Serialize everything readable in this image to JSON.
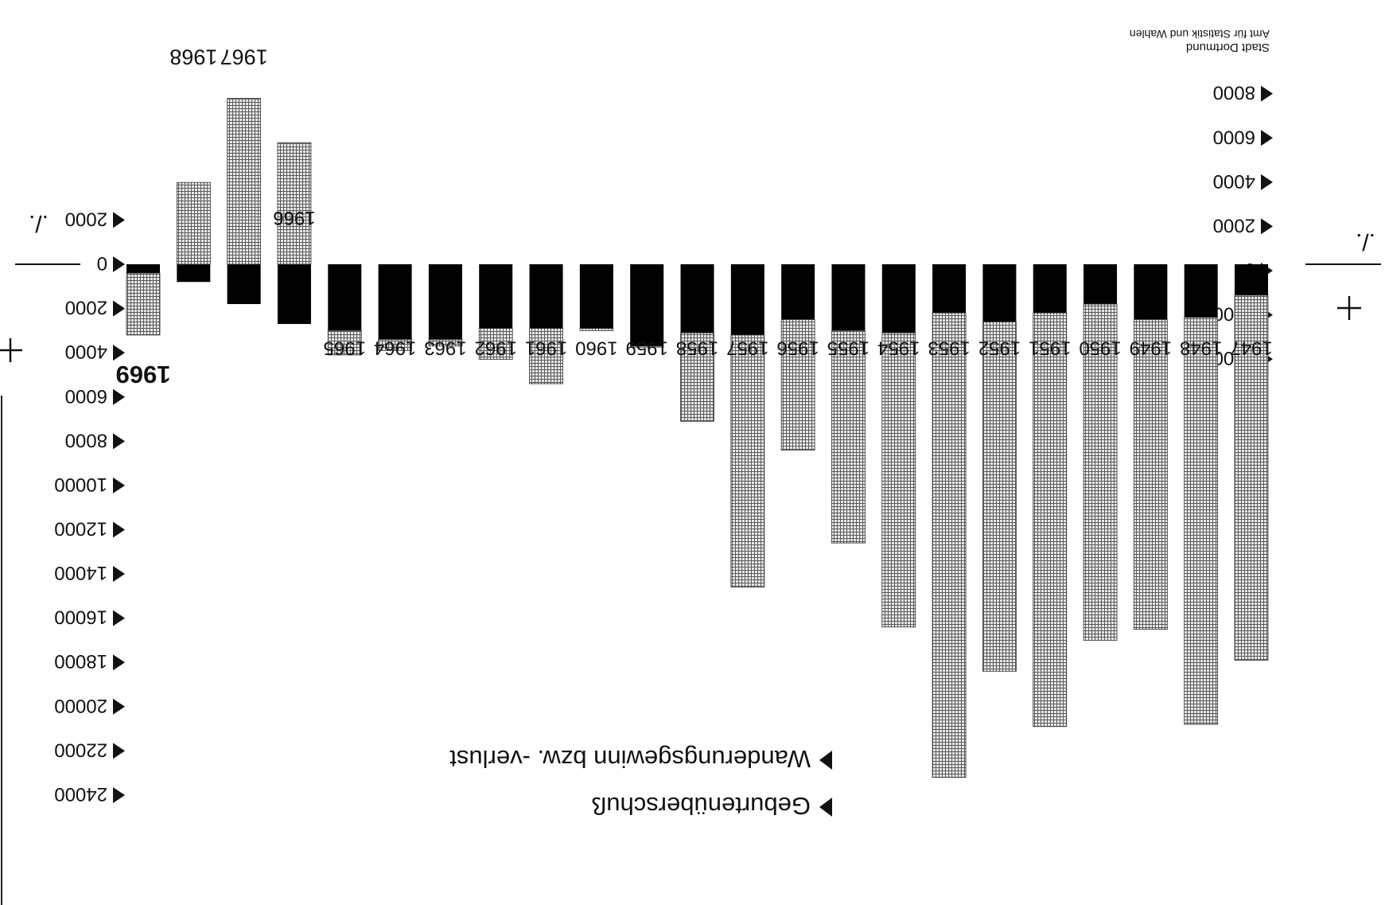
{
  "source": {
    "line1": "Stadt Dortmund",
    "line2": "Amt für Statistik und Wahlen"
  },
  "chart_data": {
    "type": "bar",
    "orientation": "rotated 180°",
    "categories": [
      "1947",
      "1948",
      "1949",
      "1950",
      "1951",
      "1952",
      "1953",
      "1954",
      "1955",
      "1956",
      "1957",
      "1958",
      "1959",
      "1960",
      "1961",
      "1962",
      "1963",
      "1964",
      "1965",
      "1966",
      "1967",
      "1968",
      "1969"
    ],
    "series": [
      {
        "name": "Wanderungsgewinn bzw. -verlust",
        "color": "#bdbdbd",
        "pattern": "grid",
        "values": [
          16500,
          18400,
          14000,
          15200,
          18700,
          15800,
          21000,
          13300,
          9600,
          5900,
          11400,
          4000,
          50,
          100,
          2500,
          1400,
          300,
          500,
          1100,
          -5500,
          -7500,
          -3700,
          2800
        ]
      },
      {
        "name": "Geburtenüberschuß",
        "color": "#000000",
        "pattern": "solid",
        "values": [
          1400,
          2400,
          2500,
          1800,
          2200,
          2600,
          2200,
          3100,
          3000,
          2500,
          3200,
          3100,
          3700,
          2900,
          2900,
          2900,
          3400,
          3400,
          3000,
          2700,
          1800,
          800,
          400
        ]
      }
    ],
    "ylim": [
      -9000,
      24000
    ],
    "y_ticks": [
      {
        "value": -8000,
        "label": "8000"
      },
      {
        "value": -6000,
        "label": "6000"
      },
      {
        "value": -4000,
        "label": "4000"
      },
      {
        "value": -2000,
        "label": "2000"
      },
      {
        "value": 0,
        "label": "0"
      },
      {
        "value": 2000,
        "label": "2000"
      },
      {
        "value": 4000,
        "label": "4000"
      },
      {
        "value": 6000,
        "label": "6000"
      },
      {
        "value": 8000,
        "label": "8000"
      },
      {
        "value": 10000,
        "label": "10000"
      },
      {
        "value": 12000,
        "label": "12000"
      },
      {
        "value": 14000,
        "label": "14000"
      },
      {
        "value": 16000,
        "label": "16000"
      },
      {
        "value": 18000,
        "label": "18000"
      },
      {
        "value": 20000,
        "label": "20000"
      },
      {
        "value": 22000,
        "label": "22000"
      },
      {
        "value": 24000,
        "label": "24000"
      }
    ],
    "sign_labels": {
      "plus": "+",
      "minus": "./.",
      "zero_line": "—"
    },
    "legend": {
      "position": "bottom-center"
    },
    "grid": false
  }
}
